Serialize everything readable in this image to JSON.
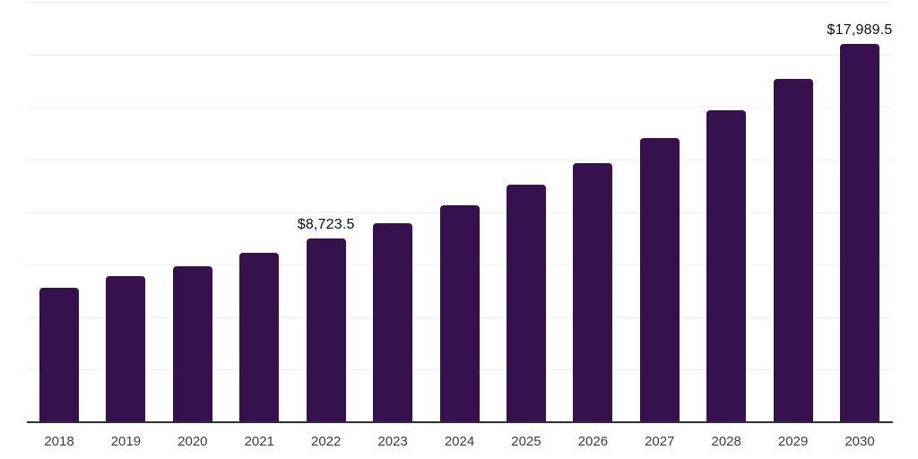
{
  "chart_data": {
    "type": "bar",
    "categories": [
      "2018",
      "2019",
      "2020",
      "2021",
      "2022",
      "2023",
      "2024",
      "2025",
      "2026",
      "2027",
      "2028",
      "2029",
      "2030"
    ],
    "values": [
      6400,
      6950,
      7420,
      8060,
      8723.5,
      9470,
      10330,
      11300,
      12320,
      13520,
      14850,
      16340,
      17989.5
    ],
    "value_labels": {
      "2022": "$8,723.5",
      "2030": "$17,989.5"
    },
    "title": "",
    "xlabel": "",
    "ylabel": "",
    "ylim": [
      0,
      20000
    ],
    "gridline_step": 2500,
    "grid": true,
    "legend": false,
    "colors": {
      "bar": "#36114E",
      "gridline": "#f1f1f1",
      "axis_line": "#2f2f2f",
      "tick_label": "#3d3d3d",
      "value_label": "#0d0d0d",
      "background": "#ffffff"
    }
  }
}
